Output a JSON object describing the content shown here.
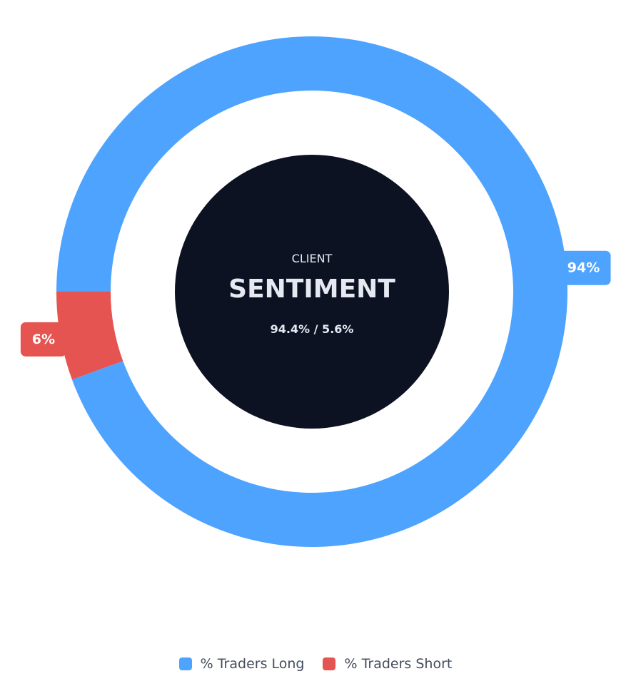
{
  "colors": {
    "long": "#4da3fe",
    "short": "#e55451",
    "center_fill": "#0c1221",
    "center_text": "#e6e9f2"
  },
  "center": {
    "label": "CLIENT",
    "title": "SENTIMENT",
    "subtitle": "94.4% / 5.6%"
  },
  "legend": [
    {
      "label": "% Traders Long",
      "color": "#4da3fe"
    },
    {
      "label": "% Traders Short",
      "color": "#e55451"
    }
  ],
  "chart_data": {
    "type": "pie",
    "variant": "donut",
    "title": "",
    "series": [
      {
        "name": "% Traders Long",
        "value": 94.4,
        "display_label": "94%",
        "color": "#4da3fe"
      },
      {
        "name": "% Traders Short",
        "value": 5.6,
        "display_label": "6%",
        "color": "#e55451"
      }
    ],
    "legend_position": "bottom"
  }
}
